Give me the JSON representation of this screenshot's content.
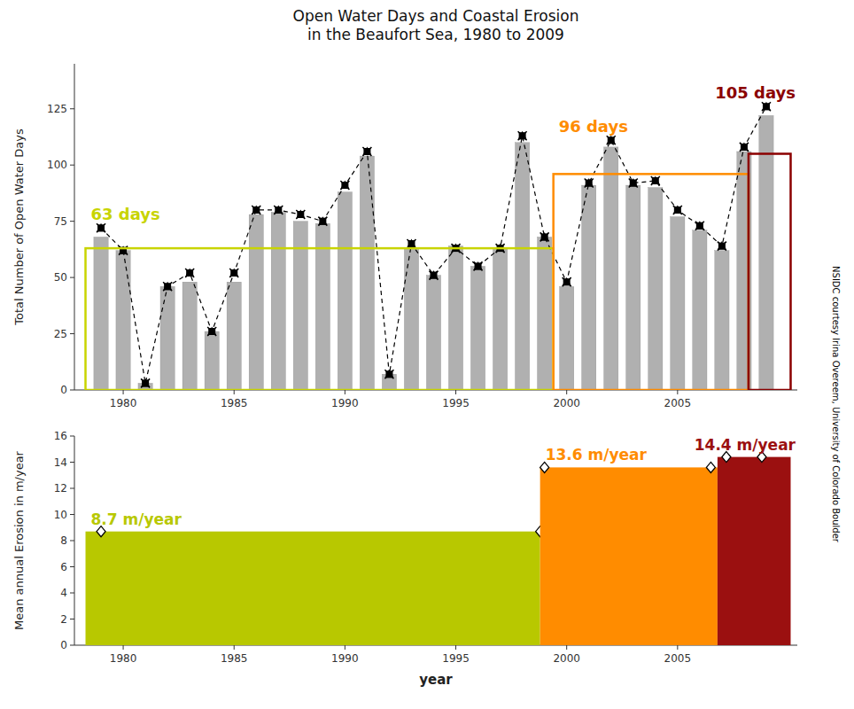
{
  "chart_data": [
    {
      "type": "bar",
      "title": "Open Water Days and Coastal Erosion\nin the Beaufort Sea, 1980 to 2009",
      "credit": "NSIDC courtesy Irina Overeem, University of Colorado Boulder",
      "ylabel": "Total Number of Open Water Days",
      "x": [
        1979,
        1980,
        1981,
        1982,
        1983,
        1984,
        1985,
        1986,
        1987,
        1988,
        1989,
        1990,
        1991,
        1992,
        1993,
        1994,
        1995,
        1996,
        1997,
        1998,
        1999,
        2000,
        2001,
        2002,
        2003,
        2004,
        2005,
        2006,
        2007,
        2008,
        2009
      ],
      "series": [
        {
          "type": "bar",
          "color": "#b0b0b0",
          "values": [
            68,
            62,
            3,
            46,
            48,
            26,
            48,
            78,
            79,
            75,
            74,
            88,
            104,
            7,
            63,
            51,
            64,
            55,
            63,
            110,
            68,
            46,
            91,
            108,
            91,
            90,
            77,
            71,
            62,
            106,
            122
          ]
        },
        {
          "type": "line",
          "color": "#000000",
          "line_style": "dashed",
          "marker": "square-triangle-x",
          "values": [
            72,
            62,
            3,
            46,
            52,
            26,
            52,
            80,
            80,
            78,
            75,
            91,
            106,
            7,
            65,
            51,
            63,
            55,
            63,
            113,
            68,
            48,
            92,
            111,
            92,
            93,
            80,
            73,
            64,
            108,
            126
          ]
        }
      ],
      "periods": [
        {
          "x1": 1978.3,
          "x2": 1999.4,
          "value": 63,
          "color": "#c8d400",
          "label": "63 days"
        },
        {
          "x1": 1999.4,
          "x2": 2008.2,
          "value": 96,
          "color": "#ff8c00",
          "label": "96 days"
        },
        {
          "x1": 2008.2,
          "x2": 2010.1,
          "value": 105,
          "color": "#8b0000",
          "label": "105 days"
        }
      ],
      "xlim": [
        1977.8,
        2010.4
      ],
      "xticks": [
        1980,
        1985,
        1990,
        1995,
        2000,
        2005
      ],
      "ylim": [
        0,
        145
      ],
      "yticks": [
        0,
        25,
        50,
        75,
        100,
        125
      ],
      "grid": false
    },
    {
      "type": "bar",
      "ylabel": "Mean annual Erosion in m/year",
      "xlabel": "year",
      "periods": [
        {
          "x1": 1978.3,
          "x2": 1998.8,
          "value": 8.7,
          "color": "#b8c800",
          "label": "8.7 m/year",
          "points_x": [
            1979.0,
            1998.8
          ]
        },
        {
          "x1": 1998.8,
          "x2": 2006.8,
          "value": 13.6,
          "color": "#ff8c00",
          "label": "13.6 m/year",
          "points_x": [
            1999.0,
            2006.5
          ]
        },
        {
          "x1": 2006.8,
          "x2": 2010.1,
          "value": 14.4,
          "color": "#9b1010",
          "label": "14.4 m/year",
          "points_x": [
            2007.2,
            2008.8
          ]
        }
      ],
      "xlim": [
        1977.8,
        2010.4
      ],
      "xticks": [
        1980,
        1985,
        1990,
        1995,
        2000,
        2005
      ],
      "ylim": [
        0,
        16
      ],
      "yticks": [
        0,
        2,
        4,
        6,
        8,
        10,
        12,
        14,
        16
      ],
      "grid": false
    }
  ]
}
